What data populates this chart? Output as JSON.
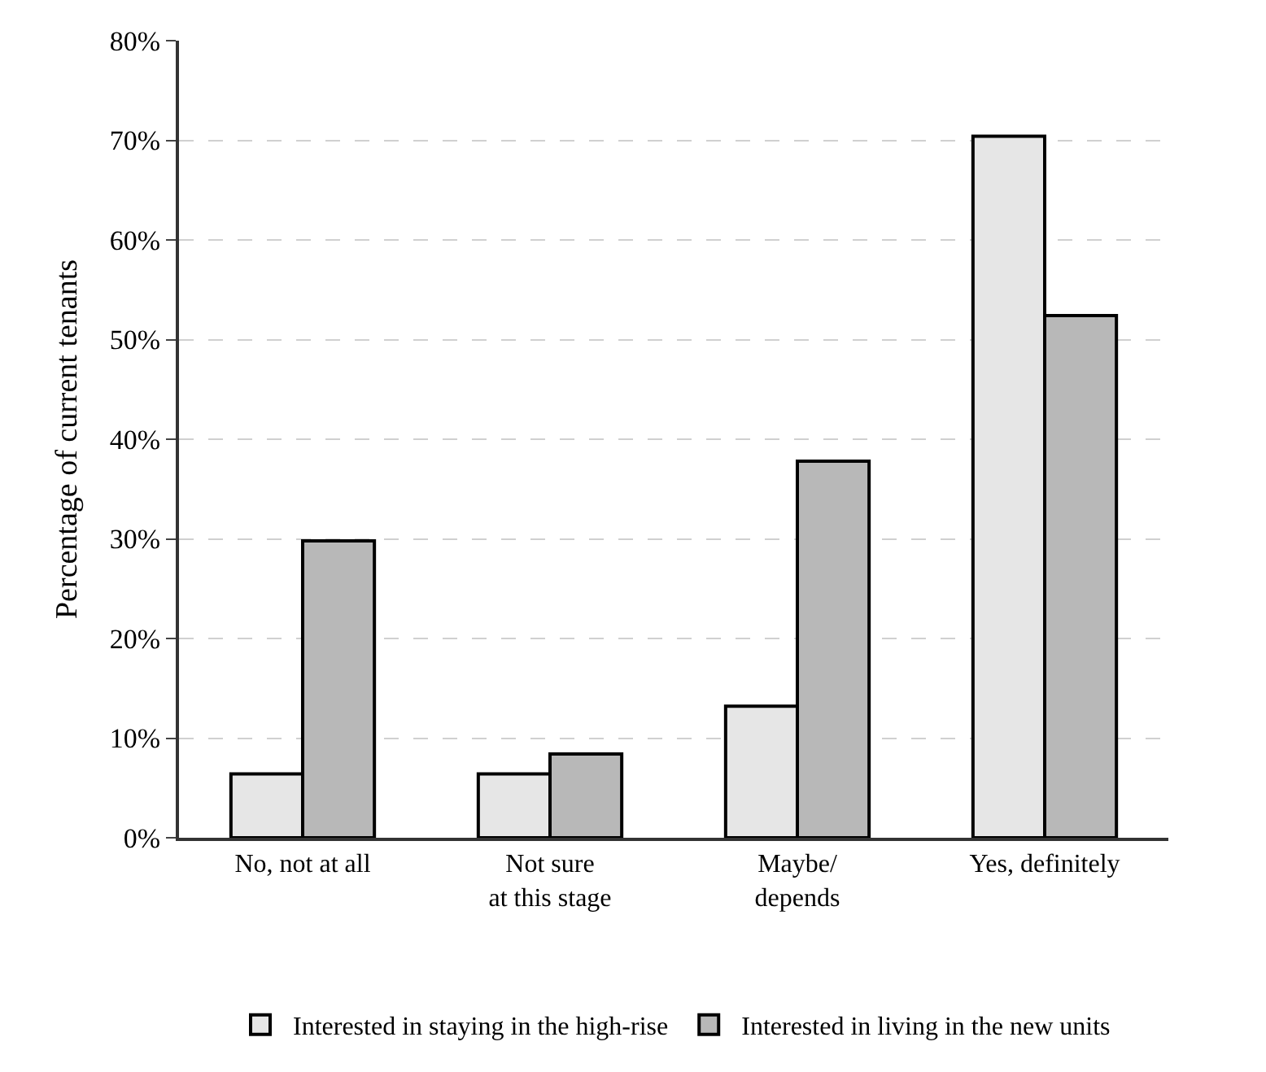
{
  "chart_data": {
    "type": "bar",
    "ylabel": "Percentage of current tenants",
    "categories": [
      "No, not at all",
      "Not sure\nat this stage",
      "Maybe/\ndepends",
      "Yes, definitely"
    ],
    "series": [
      {
        "name": "Interested in staying in the high-rise",
        "color": "#e6e6e6",
        "values": [
          6.4,
          6.4,
          13.2,
          70.4
        ]
      },
      {
        "name": "Interested in living in the new units",
        "color": "#b8b8b8",
        "values": [
          29.8,
          8.4,
          37.8,
          52.4
        ]
      }
    ],
    "ylim": [
      0,
      80
    ],
    "yticks": [
      {
        "value": 0,
        "label": "0%"
      },
      {
        "value": 10,
        "label": "10%"
      },
      {
        "value": 20,
        "label": "20%"
      },
      {
        "value": 30,
        "label": "30%"
      },
      {
        "value": 40,
        "label": "40%"
      },
      {
        "value": 50,
        "label": "50%"
      },
      {
        "value": 60,
        "label": "60%"
      },
      {
        "value": 70,
        "label": "70%"
      },
      {
        "value": 80,
        "label": "80%"
      }
    ],
    "grid": "y",
    "legend": "bottom"
  }
}
